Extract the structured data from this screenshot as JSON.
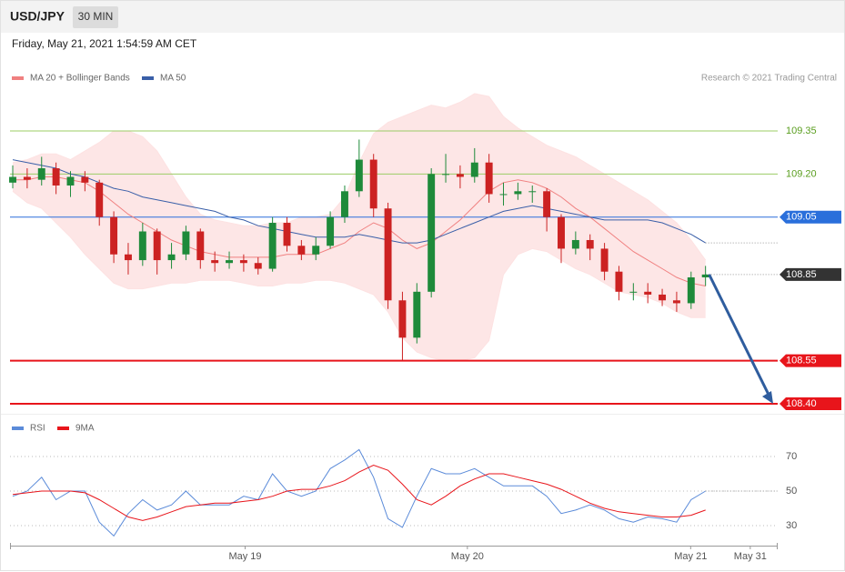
{
  "header": {
    "symbol": "USD/JPY",
    "interval": "30 MIN",
    "timestamp": "Friday, May 21, 2021 1:54:59 AM CET",
    "credit": "Research © 2021 Trading Central"
  },
  "chart_data": [
    {
      "type": "candlestick",
      "up_color": "#1e8a3a",
      "down_color": "#cc2222",
      "open": [
        109.17,
        109.19,
        109.18,
        109.22,
        109.16,
        109.19,
        109.17,
        109.05,
        108.92,
        108.9,
        109.0,
        108.9,
        108.92,
        109.0,
        108.9,
        108.89,
        108.9,
        108.89,
        108.87,
        109.03,
        108.95,
        108.92,
        108.95,
        109.05,
        109.14,
        109.25,
        109.08,
        108.76,
        108.63,
        108.79,
        109.2,
        109.2,
        109.19,
        109.24,
        109.13,
        109.13,
        109.14,
        109.14,
        109.05,
        108.94,
        108.97,
        108.94,
        108.86,
        108.79,
        108.79,
        108.78,
        108.76,
        108.75,
        108.84
      ],
      "high": [
        109.23,
        109.22,
        109.26,
        109.24,
        109.21,
        109.21,
        109.18,
        109.07,
        108.96,
        109.03,
        109.01,
        108.96,
        109.02,
        109.01,
        108.93,
        108.93,
        108.92,
        108.91,
        109.05,
        109.05,
        108.97,
        108.98,
        109.07,
        109.16,
        109.32,
        109.27,
        109.1,
        108.79,
        108.82,
        109.22,
        109.27,
        109.23,
        109.29,
        109.27,
        109.17,
        109.17,
        109.16,
        109.15,
        109.06,
        109.0,
        108.99,
        108.96,
        108.88,
        108.82,
        108.82,
        108.8,
        108.79,
        108.86,
        108.88
      ],
      "low": [
        109.15,
        109.15,
        109.16,
        109.13,
        109.12,
        109.14,
        109.02,
        108.89,
        108.85,
        108.88,
        108.85,
        108.87,
        108.9,
        108.87,
        108.86,
        108.87,
        108.86,
        108.85,
        108.86,
        108.93,
        108.9,
        108.9,
        108.94,
        109.03,
        109.12,
        109.05,
        108.73,
        108.55,
        108.61,
        108.77,
        109.17,
        109.15,
        109.17,
        109.1,
        109.09,
        109.11,
        109.1,
        109.0,
        108.89,
        108.92,
        108.9,
        108.83,
        108.76,
        108.76,
        108.75,
        108.74,
        108.72,
        108.73,
        108.81
      ],
      "close": [
        109.19,
        109.18,
        109.22,
        109.16,
        109.19,
        109.17,
        109.05,
        108.92,
        108.9,
        109.0,
        108.9,
        108.92,
        109.0,
        108.9,
        108.89,
        108.9,
        108.89,
        108.87,
        109.03,
        108.95,
        108.92,
        108.95,
        109.05,
        109.14,
        109.25,
        109.08,
        108.76,
        108.63,
        108.79,
        109.2,
        109.2,
        109.19,
        109.24,
        109.13,
        109.13,
        109.14,
        109.14,
        109.05,
        108.94,
        108.97,
        108.94,
        108.86,
        108.79,
        108.79,
        108.78,
        108.76,
        108.75,
        108.84,
        108.85
      ],
      "series": [
        {
          "name": "MA 20 + Bollinger Bands",
          "color": "#f08080",
          "band_color": "#fde2e2",
          "values": [
            109.18,
            109.18,
            109.19,
            109.19,
            109.18,
            109.17,
            109.14,
            109.1,
            109.06,
            109.03,
            109.0,
            108.97,
            108.95,
            108.93,
            108.92,
            108.91,
            108.91,
            108.91,
            108.91,
            108.92,
            108.92,
            108.92,
            108.94,
            108.96,
            109.0,
            109.03,
            109.01,
            108.97,
            108.94,
            108.96,
            109.0,
            109.04,
            109.09,
            109.14,
            109.17,
            109.18,
            109.17,
            109.15,
            109.12,
            109.08,
            109.05,
            109.01,
            108.97,
            108.93,
            108.9,
            108.87,
            108.84,
            108.82,
            108.81
          ],
          "upper": [
            109.24,
            109.25,
            109.27,
            109.27,
            109.25,
            109.28,
            109.31,
            109.35,
            109.35,
            109.33,
            109.28,
            109.2,
            109.12,
            109.06,
            109.04,
            109.03,
            109.02,
            109.02,
            109.03,
            109.03,
            109.05,
            109.05,
            109.06,
            109.12,
            109.24,
            109.34,
            109.38,
            109.4,
            109.42,
            109.44,
            109.43,
            109.45,
            109.48,
            109.47,
            109.4,
            109.36,
            109.33,
            109.3,
            109.28,
            109.26,
            109.23,
            109.2,
            109.17,
            109.14,
            109.11,
            109.07,
            109.03,
            108.97,
            108.9
          ],
          "lower": [
            109.14,
            109.1,
            109.08,
            109.03,
            108.98,
            108.92,
            108.87,
            108.82,
            108.8,
            108.8,
            108.81,
            108.82,
            108.82,
            108.83,
            108.83,
            108.83,
            108.82,
            108.81,
            108.81,
            108.82,
            108.82,
            108.83,
            108.83,
            108.82,
            108.8,
            108.78,
            108.72,
            108.63,
            108.58,
            108.56,
            108.55,
            108.55,
            108.56,
            108.62,
            108.85,
            108.92,
            108.94,
            108.93,
            108.9,
            108.87,
            108.85,
            108.82,
            108.79,
            108.78,
            108.77,
            108.75,
            108.72,
            108.7,
            108.7
          ]
        },
        {
          "name": "MA 50",
          "color": "#3a5fa8",
          "values": [
            109.25,
            109.24,
            109.23,
            109.22,
            109.2,
            109.19,
            109.17,
            109.15,
            109.14,
            109.12,
            109.11,
            109.1,
            109.09,
            109.08,
            109.07,
            109.05,
            109.04,
            109.02,
            109.01,
            109.0,
            108.99,
            108.98,
            108.98,
            108.98,
            108.99,
            108.98,
            108.97,
            108.96,
            108.96,
            108.97,
            108.99,
            109.01,
            109.03,
            109.05,
            109.07,
            109.08,
            109.09,
            109.08,
            109.07,
            109.06,
            109.05,
            109.04,
            109.04,
            109.04,
            109.04,
            109.03,
            109.01,
            108.99,
            108.96
          ]
        }
      ],
      "levels": [
        {
          "value": 109.35,
          "label": "109.35",
          "color": "#9ccc65",
          "text_color": "#5a9e1f",
          "style": "thin"
        },
        {
          "value": 109.2,
          "label": "109.20",
          "color": "#9ccc65",
          "text_color": "#5a9e1f",
          "style": "thin"
        },
        {
          "value": 109.05,
          "label": "109.05",
          "color": "#2a6fdb",
          "text_color": "#ffffff",
          "style": "tag"
        },
        {
          "value": 108.85,
          "label": "108.85",
          "color": "#333333",
          "text_color": "#ffffff",
          "style": "last"
        },
        {
          "value": 108.55,
          "label": "108.55",
          "color": "#e8151b",
          "text_color": "#ffffff",
          "style": "thick"
        },
        {
          "value": 108.4,
          "label": "108.40",
          "color": "#e8151b",
          "text_color": "#ffffff",
          "style": "thick"
        }
      ],
      "forecast_color": "#2f5d9e",
      "xlim": [
        -0.19,
        53.0
      ],
      "ylim": [
        108.365,
        109.692
      ]
    },
    {
      "type": "rsi",
      "series": [
        {
          "name": "RSI",
          "color": "#5b8bd9",
          "values": [
            47,
            50,
            58,
            45,
            50,
            50,
            32,
            24,
            37,
            45,
            39,
            42,
            50,
            42,
            42,
            42,
            47,
            45,
            60,
            50,
            47,
            50,
            63,
            68,
            74,
            58,
            34,
            29,
            47,
            63,
            60,
            60,
            63,
            58,
            53,
            53,
            53,
            47,
            37,
            39,
            42,
            39,
            34,
            32,
            35,
            34,
            32,
            45,
            50
          ]
        },
        {
          "name": "9MA",
          "color": "#e8151b",
          "values": [
            48,
            49,
            50,
            50,
            50,
            49,
            45,
            40,
            35,
            33,
            35,
            38,
            41,
            42,
            43,
            43,
            44,
            45,
            47,
            50,
            51,
            51,
            53,
            56,
            61,
            65,
            62,
            54,
            45,
            42,
            47,
            53,
            57,
            60,
            60,
            58,
            56,
            54,
            51,
            47,
            43,
            40,
            38,
            37,
            36,
            35,
            35,
            36,
            39
          ]
        }
      ],
      "ylim": [
        19.5,
        94.2
      ],
      "yticks": [
        30,
        50,
        70
      ],
      "grid": true,
      "xticks": [
        {
          "value": 16.1,
          "label": "May 19"
        },
        {
          "value": 31.5,
          "label": "May 20"
        },
        {
          "value": 46.97,
          "label": "May 21"
        },
        {
          "value": 51.1,
          "label": "May 31"
        }
      ]
    }
  ]
}
